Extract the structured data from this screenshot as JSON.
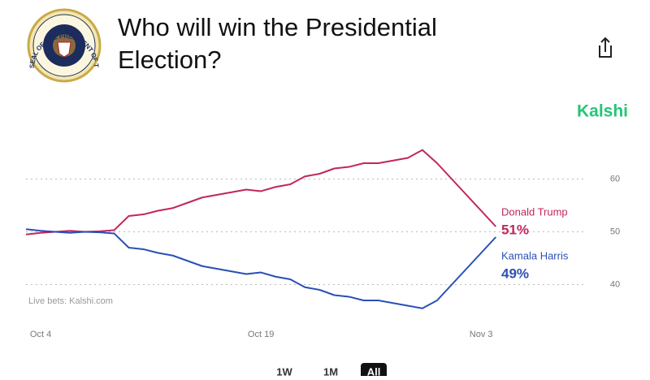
{
  "header": {
    "seal_text": "SEAL OF THE PRESIDENT OF THE UNITED STATES",
    "title": "Who will win the Presidential Election?"
  },
  "brand": "Kalshi",
  "chart_data": {
    "type": "line",
    "categories": [
      null,
      "Oct 4",
      null,
      null,
      null,
      null,
      null,
      null,
      null,
      null,
      null,
      null,
      null,
      null,
      null,
      null,
      "Oct 19",
      null,
      null,
      null,
      null,
      null,
      null,
      null,
      null,
      null,
      null,
      null,
      null,
      null,
      null,
      "Nov 3",
      null
    ],
    "series": [
      {
        "name": "Donald Trump",
        "color": "#c0265f",
        "values": [
          49.5,
          49.8,
          50,
          50.2,
          50,
          50.1,
          50.3,
          53,
          53.3,
          54,
          54.5,
          55.5,
          56.5,
          57,
          57.5,
          58,
          57.7,
          58.5,
          59,
          60.5,
          61,
          62,
          62.3,
          63,
          63,
          63.5,
          64,
          65.5,
          63,
          60,
          57,
          54,
          51
        ],
        "value_labels": [
          null,
          null,
          null,
          null,
          null,
          null,
          null,
          null,
          null,
          null,
          null,
          null,
          null,
          null,
          null,
          null,
          null,
          null,
          null,
          null,
          null,
          null,
          null,
          null,
          null,
          null,
          null,
          null,
          null,
          null,
          null,
          null,
          "51%"
        ]
      },
      {
        "name": "Kamala Harris",
        "color": "#2a4fb5",
        "values": [
          50.5,
          50.2,
          50,
          49.8,
          50,
          49.9,
          49.7,
          47,
          46.7,
          46,
          45.5,
          44.5,
          43.5,
          43,
          42.5,
          42,
          42.3,
          41.5,
          41,
          39.5,
          39,
          38,
          37.7,
          37,
          37,
          36.5,
          36,
          35.5,
          37,
          40,
          43,
          46,
          49
        ],
        "value_labels": [
          null,
          null,
          null,
          null,
          null,
          null,
          null,
          null,
          null,
          null,
          null,
          null,
          null,
          null,
          null,
          null,
          null,
          null,
          null,
          null,
          null,
          null,
          null,
          null,
          null,
          null,
          null,
          null,
          null,
          null,
          null,
          null,
          "49%"
        ]
      }
    ],
    "ylim": [
      35,
      67
    ],
    "yticks": [
      40,
      50,
      60
    ],
    "grid": true,
    "source": "Live bets: Kalshi.com"
  },
  "range_buttons": [
    "1W",
    "1M",
    "All"
  ],
  "selected_range": 2
}
